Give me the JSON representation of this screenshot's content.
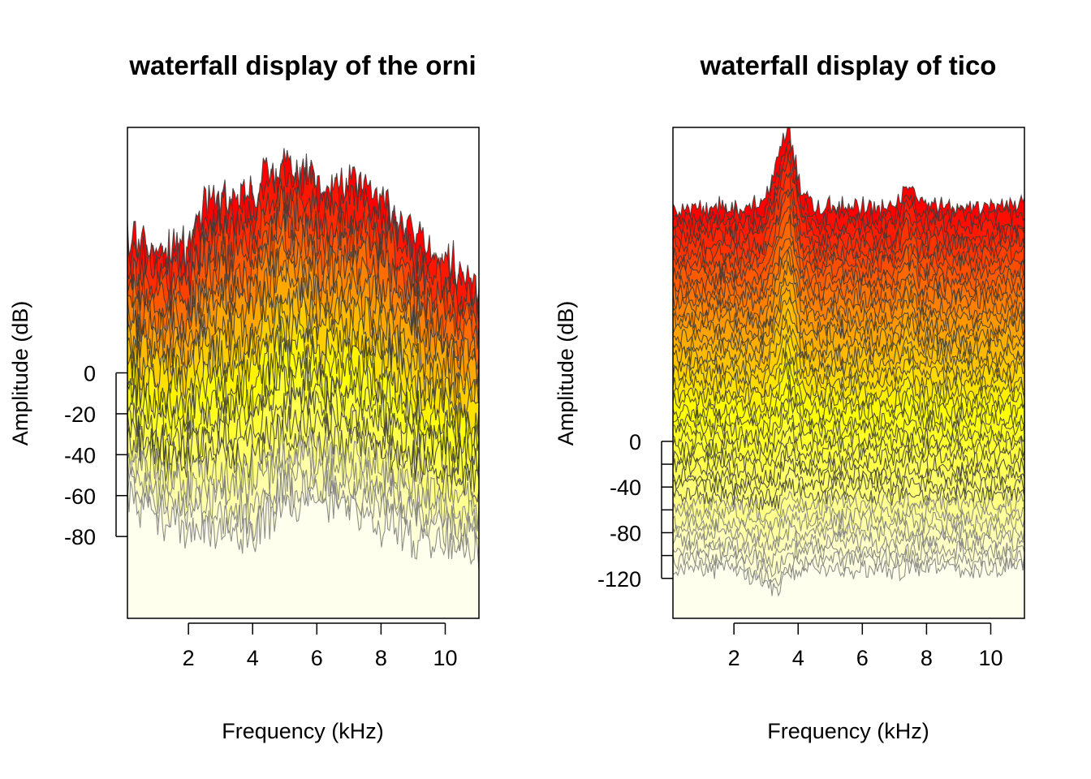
{
  "chart_data": [
    {
      "type": "area",
      "subtype": "waterfall",
      "title": "waterfall display of the orni",
      "xlabel": "Frequency (kHz)",
      "ylabel": "Amplitude (dB)",
      "x_ticks": [
        2,
        4,
        6,
        8,
        10
      ],
      "y_ticks": [
        0,
        -20,
        -40,
        -60,
        -80
      ],
      "xlim": [
        0.1,
        11.05
      ],
      "ylim": [
        -120,
        120
      ],
      "n_spectra": 24,
      "colors": {
        "top": "#ff0000",
        "mid_orange": "#ff8c00",
        "mid_yellow": "#ffff00",
        "bottom": "#ffffee",
        "line": "#3a3a3a"
      },
      "envelope": [
        {
          "x": 0.1,
          "y": 68
        },
        {
          "x": 0.5,
          "y": 62
        },
        {
          "x": 1.0,
          "y": 60
        },
        {
          "x": 2.0,
          "y": 62
        },
        {
          "x": 2.5,
          "y": 82
        },
        {
          "x": 3.0,
          "y": 86
        },
        {
          "x": 3.5,
          "y": 84
        },
        {
          "x": 4.0,
          "y": 88
        },
        {
          "x": 4.5,
          "y": 98
        },
        {
          "x": 5.0,
          "y": 102
        },
        {
          "x": 5.5,
          "y": 100
        },
        {
          "x": 6.0,
          "y": 94
        },
        {
          "x": 6.5,
          "y": 90
        },
        {
          "x": 7.0,
          "y": 94
        },
        {
          "x": 7.5,
          "y": 90
        },
        {
          "x": 8.0,
          "y": 84
        },
        {
          "x": 8.5,
          "y": 76
        },
        {
          "x": 9.0,
          "y": 68
        },
        {
          "x": 9.5,
          "y": 62
        },
        {
          "x": 10.0,
          "y": 56
        },
        {
          "x": 10.5,
          "y": 50
        },
        {
          "x": 11.05,
          "y": 44
        }
      ],
      "bottom_spectrum": [
        {
          "x": 0.1,
          "y": -58
        },
        {
          "x": 1.0,
          "y": -70
        },
        {
          "x": 2.0,
          "y": -76
        },
        {
          "x": 3.0,
          "y": -76
        },
        {
          "x": 4.0,
          "y": -78
        },
        {
          "x": 5.0,
          "y": -66
        },
        {
          "x": 6.0,
          "y": -66
        },
        {
          "x": 7.0,
          "y": -68
        },
        {
          "x": 8.0,
          "y": -74
        },
        {
          "x": 9.0,
          "y": -78
        },
        {
          "x": 10.0,
          "y": -84
        },
        {
          "x": 11.05,
          "y": -88
        }
      ]
    },
    {
      "type": "area",
      "subtype": "waterfall",
      "title": "waterfall display of tico",
      "xlabel": "Frequency (kHz)",
      "ylabel": "Amplitude (dB)",
      "x_ticks": [
        2,
        4,
        6,
        8,
        10
      ],
      "y_ticks": [
        0,
        -20,
        -40,
        -60,
        -80,
        -100,
        -120
      ],
      "y_tick_labels": [
        "0",
        "",
        "-40",
        "",
        "-80",
        "",
        "-120"
      ],
      "xlim": [
        0.1,
        11.05
      ],
      "ylim": [
        -155,
        275
      ],
      "n_spectra": 40,
      "colors": {
        "top": "#ff0000",
        "mid_orange": "#ff8c00",
        "mid_yellow": "#ffff00",
        "bottom": "#ffffee",
        "line": "#3a3a3a"
      },
      "envelope": [
        {
          "x": 0.1,
          "y": 205
        },
        {
          "x": 1.0,
          "y": 205
        },
        {
          "x": 2.0,
          "y": 205
        },
        {
          "x": 2.9,
          "y": 206
        },
        {
          "x": 3.2,
          "y": 235
        },
        {
          "x": 3.7,
          "y": 275
        },
        {
          "x": 4.1,
          "y": 220
        },
        {
          "x": 4.5,
          "y": 205
        },
        {
          "x": 6.0,
          "y": 205
        },
        {
          "x": 7.0,
          "y": 205
        },
        {
          "x": 7.4,
          "y": 225
        },
        {
          "x": 7.8,
          "y": 208
        },
        {
          "x": 9.0,
          "y": 205
        },
        {
          "x": 10.0,
          "y": 205
        },
        {
          "x": 11.05,
          "y": 207
        }
      ],
      "bottom_spectrum": [
        {
          "x": 0.1,
          "y": -110
        },
        {
          "x": 2.0,
          "y": -112
        },
        {
          "x": 3.3,
          "y": -130
        },
        {
          "x": 4.0,
          "y": -112
        },
        {
          "x": 6.0,
          "y": -112
        },
        {
          "x": 8.0,
          "y": -112
        },
        {
          "x": 10.0,
          "y": -112
        },
        {
          "x": 11.05,
          "y": -112
        }
      ]
    }
  ]
}
